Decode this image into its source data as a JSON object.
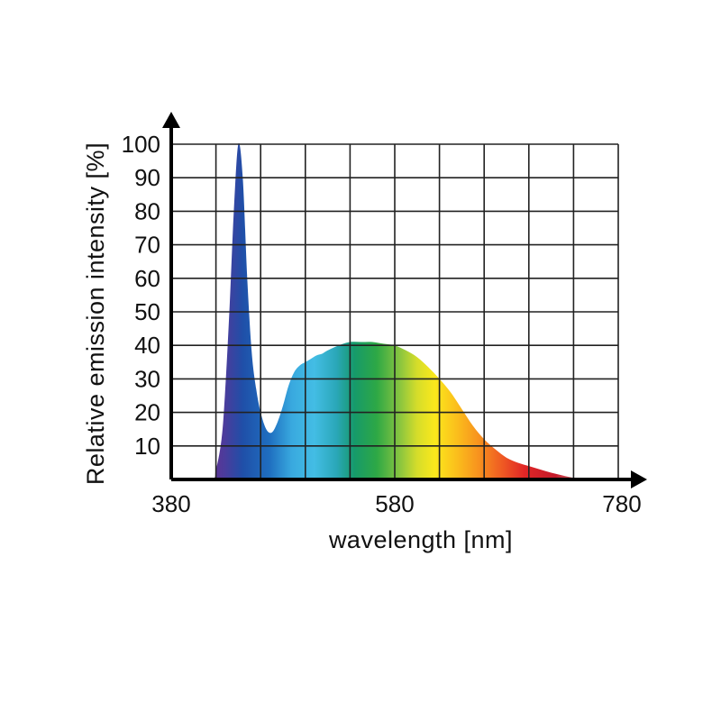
{
  "chart_data": {
    "type": "area",
    "title": "",
    "xlabel": "wavelength [nm]",
    "ylabel": "Relative emission intensity [%]",
    "xlim": [
      380,
      780
    ],
    "ylim": [
      0,
      100
    ],
    "x_tick_labels": [
      "380",
      "580",
      "780"
    ],
    "y_tick_labels": [
      "10",
      "20",
      "30",
      "40",
      "50",
      "60",
      "70",
      "80",
      "90",
      "100"
    ],
    "grid": true,
    "series": [
      {
        "x": [
          380,
          415,
          420,
          425,
          428,
          432,
          436,
          440,
          444,
          448,
          452,
          456,
          460,
          465,
          470,
          475,
          480,
          485,
          490,
          495,
          500,
          505,
          510,
          515,
          520,
          530,
          540,
          550,
          560,
          570,
          580,
          590,
          600,
          610,
          620,
          630,
          640,
          650,
          660,
          670,
          680,
          690,
          700,
          710,
          720,
          730,
          740,
          750,
          760,
          780
        ],
        "y": [
          0,
          0,
          3,
          12,
          25,
          50,
          80,
          100,
          90,
          60,
          38,
          27,
          20,
          15,
          14,
          17,
          22,
          28,
          32,
          34,
          35,
          36,
          37,
          37.5,
          38.5,
          40,
          41,
          41,
          41,
          40.5,
          40,
          38.5,
          36.5,
          33.5,
          30,
          26,
          21,
          16,
          12,
          9,
          6.5,
          5,
          4,
          3,
          2,
          1.2,
          0.5,
          0.2,
          0,
          0
        ]
      }
    ]
  }
}
